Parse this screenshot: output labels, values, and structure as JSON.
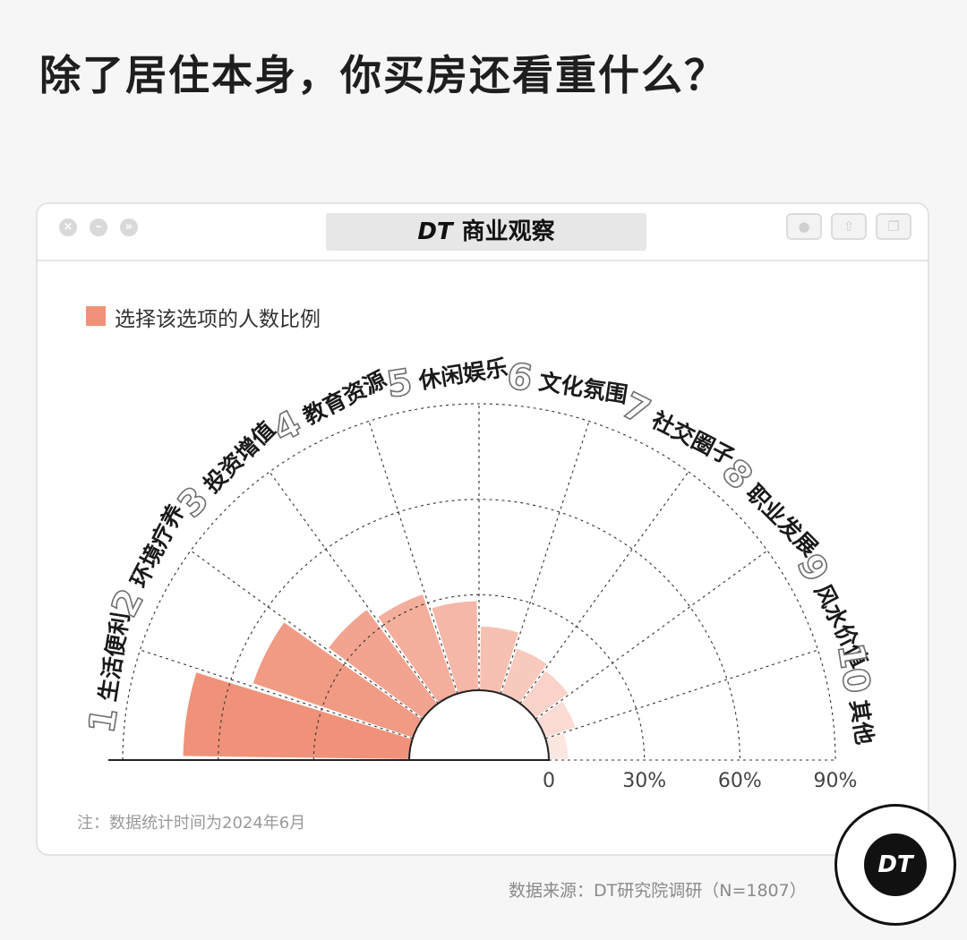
{
  "page": {
    "title": "除了居住本身，你买房还看重什么？",
    "brand": "商业观察",
    "brand_logo_text": "DT",
    "footnote": "注：数据统计时间为2024年6月",
    "source": "数据来源：DT研究院调研（N=1807）",
    "badge_text": "DT"
  },
  "colors": {
    "accent": "#f0927a",
    "accent_light": "#fbe1da",
    "grid": "#333333"
  },
  "chart_data": {
    "type": "polar-bar",
    "legend": "选择该选项的人数比例",
    "categories": [
      {
        "rank": "1",
        "label": "生活便利",
        "value": 71
      },
      {
        "rank": "2",
        "label": "环境疗养",
        "value": 53
      },
      {
        "rank": "3",
        "label": "投资增值",
        "value": 37
      },
      {
        "rank": "4",
        "label": "教育资源",
        "value": 33
      },
      {
        "rank": "5",
        "label": "休闲娱乐",
        "value": 28
      },
      {
        "rank": "6",
        "label": "文化氛围",
        "value": 20
      },
      {
        "rank": "7",
        "label": "社交圈子",
        "value": 15
      },
      {
        "rank": "8",
        "label": "职业发展",
        "value": 13
      },
      {
        "rank": "9",
        "label": "风水价值",
        "value": 10
      },
      {
        "rank": "10",
        "label": "其他",
        "value": 6
      }
    ],
    "radial_ticks": [
      "0",
      "30%",
      "60%",
      "90%"
    ],
    "tick_values": [
      0,
      30,
      60,
      90
    ],
    "rlim": [
      0,
      90
    ]
  }
}
